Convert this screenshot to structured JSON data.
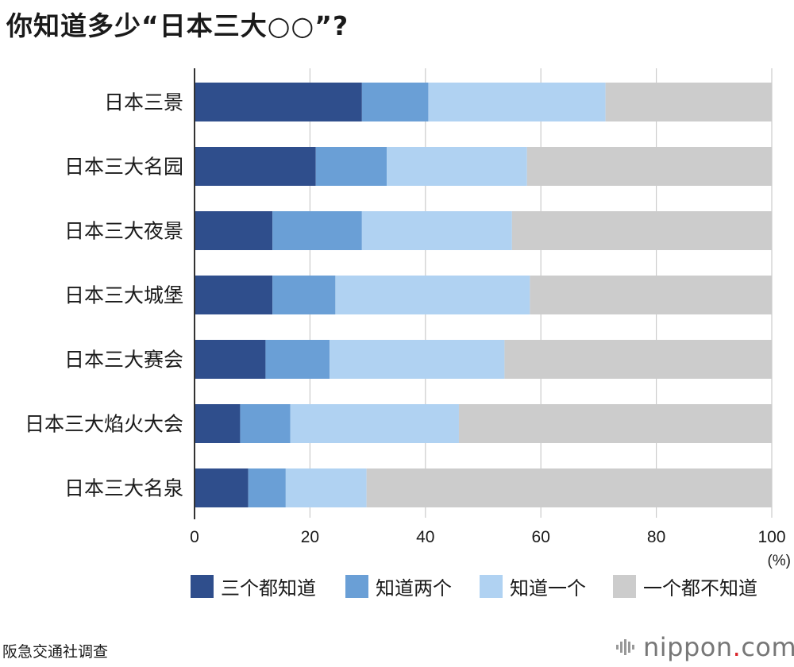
{
  "title": "你知道多少“日本三大○○”?",
  "source": "阪急交通社调查",
  "brand": {
    "name": "nippon",
    "dot": ".",
    "tld": "com"
  },
  "colors": {
    "series": [
      "#2f4e8c",
      "#6a9fd6",
      "#b0d2f2",
      "#cccccc"
    ],
    "grid": "#cccccc",
    "axis": "#333333",
    "brand_dot": "#d9262c"
  },
  "chart_data": {
    "type": "bar",
    "orientation": "horizontal",
    "stacked": true,
    "title": "你知道多少“日本三大○○”?",
    "categories": [
      "日本三景",
      "日本三大名园",
      "日本三大夜景",
      "日本三大城堡",
      "日本三大赛会",
      "日本三大焰火大会",
      "日本三大名泉"
    ],
    "series": [
      {
        "name": "三个都知道",
        "values": [
          29.0,
          21.0,
          13.5,
          13.5,
          12.3,
          7.9,
          9.3
        ]
      },
      {
        "name": "知道两个",
        "values": [
          11.5,
          12.3,
          15.5,
          10.9,
          11.1,
          8.7,
          6.5
        ]
      },
      {
        "name": "知道一个",
        "values": [
          30.7,
          24.3,
          26.0,
          33.7,
          30.3,
          29.2,
          14.0
        ]
      },
      {
        "name": "一个都不知道",
        "values": [
          28.8,
          42.4,
          45.0,
          41.9,
          46.3,
          54.2,
          70.2
        ]
      }
    ],
    "xticks": [
      "0",
      "20",
      "40",
      "60",
      "80",
      "100"
    ],
    "xlim": [
      0,
      100
    ],
    "xlabel": "(%)",
    "ylabel": "",
    "grid": true,
    "legend": "bottom"
  }
}
